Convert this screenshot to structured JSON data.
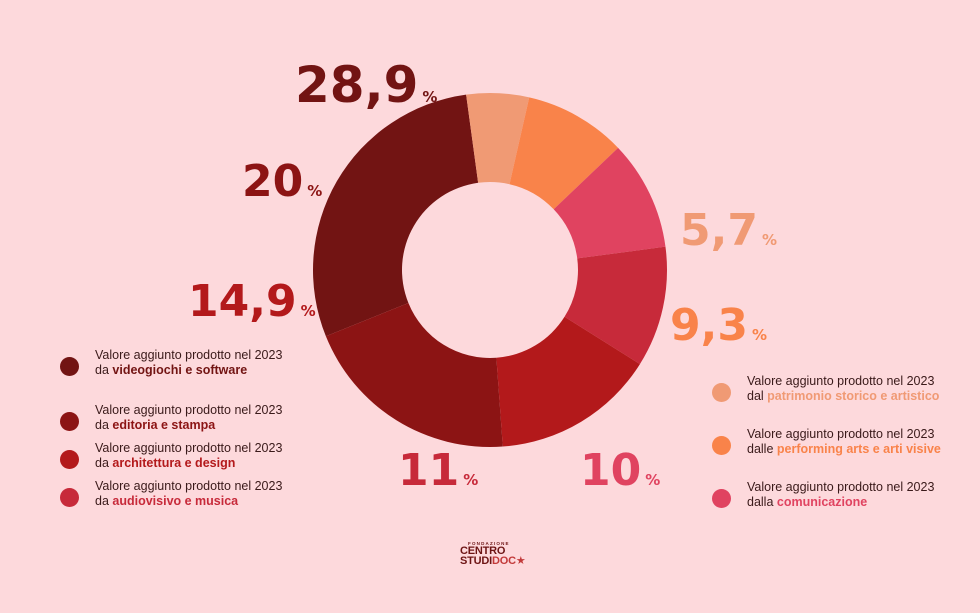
{
  "chart_data": {
    "type": "pie",
    "donut": true,
    "unit": "%",
    "slices": [
      {
        "value_label": "28,9",
        "value": 28.9,
        "color": "#721413",
        "legend_prefix": "Valore aggiunto prodotto nel 2023 da ",
        "legend_bold": "videogiochi e software"
      },
      {
        "value_label": "5,7",
        "value": 5.7,
        "color": "#f09a74",
        "legend_prefix": "Valore aggiunto prodotto nel 2023 dal ",
        "legend_bold": "patrimonio storico e artistico"
      },
      {
        "value_label": "9,3",
        "value": 9.3,
        "color": "#f9834a",
        "legend_prefix": "Valore aggiunto prodotto nel 2023 dalle ",
        "legend_bold": "performing arts e arti visive"
      },
      {
        "value_label": "10",
        "value": 10,
        "color": "#e04360",
        "legend_prefix": "Valore aggiunto prodotto nel 2023 dalla ",
        "legend_bold": "comunicazione"
      },
      {
        "value_label": "11",
        "value": 11,
        "color": "#c72a3a",
        "legend_prefix": "Valore aggiunto prodotto nel 2023 da ",
        "legend_bold": "audiovisivo e musica"
      },
      {
        "value_label": "14,9",
        "value": 14.9,
        "color": "#b3191b",
        "legend_prefix": "Valore aggiunto prodotto nel 2023 da ",
        "legend_bold": "architettura e design"
      },
      {
        "value_label": "20",
        "value": 20,
        "color": "#8c1414",
        "legend_prefix": "Valore aggiunto prodotto nel 2023 da ",
        "legend_bold": "editoria e stampa"
      }
    ]
  },
  "logo": {
    "top": "FONDAZIONE",
    "line1": "CENTRO",
    "line2a": "STUDI",
    "line2b": "DOC"
  }
}
